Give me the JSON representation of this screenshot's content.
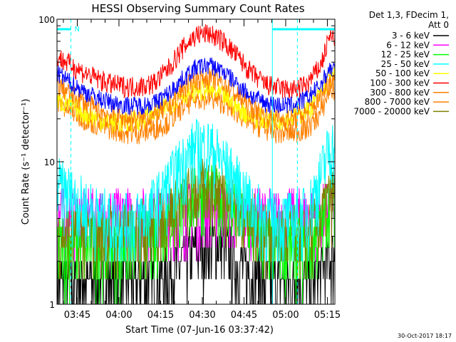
{
  "chart_data": {
    "type": "line",
    "title": "HESSI Observing Summary Count Rates",
    "xlabel": "Start Time (07-Jun-16 03:37:42)",
    "ylabel": "Count Rate (s⁻¹ detector⁻¹)",
    "yscale": "log",
    "ylim": [
      1,
      100
    ],
    "xlim_minutes": [
      0,
      100
    ],
    "x_tick_labels": [
      "03:45",
      "04:00",
      "04:15",
      "04:30",
      "04:45",
      "05:00",
      "05:15"
    ],
    "x_tick_minutes": [
      7.3,
      22.3,
      37.3,
      52.3,
      67.3,
      82.3,
      97.3
    ],
    "y_tick_labels": [
      "1",
      "10",
      "100"
    ],
    "y_tick_values": [
      1,
      10,
      100
    ],
    "grid": false,
    "legend_header": [
      "Det 1,3, FDecim 1,",
      "Att 0"
    ],
    "legend_position": "right",
    "footer": "30-Oct-2017 18:17",
    "markers": {
      "night_label": "N",
      "night_end_minute": 5,
      "saa_start_minute": 77.5,
      "saa_end_minute": 86.5,
      "dashed_minutes": [
        5,
        86.5
      ]
    },
    "x_minutes": [
      0,
      5,
      10,
      15,
      20,
      25,
      30,
      35,
      40,
      45,
      50,
      55,
      60,
      65,
      70,
      75,
      80,
      85,
      90,
      95,
      98
    ],
    "series": [
      {
        "name": "3 - 6 keV",
        "color": "#000000",
        "values": [
          1.5,
          1.5,
          1.5,
          1.5,
          1.5,
          1.5,
          1.5,
          1.5,
          1.6,
          2.0,
          2.5,
          2.8,
          2.5,
          2.0,
          1.6,
          1.5,
          1.5,
          1.5,
          1.5,
          1.7,
          2.2
        ]
      },
      {
        "name": "6 - 12 keV",
        "color": "#ff00ff",
        "values": [
          4.2,
          4.2,
          4.2,
          4.2,
          4.2,
          4.2,
          4.2,
          4.2,
          4.2,
          4.5,
          4.8,
          5.0,
          4.8,
          4.3,
          4.2,
          4.2,
          4.2,
          4.2,
          4.2,
          4.5,
          5.0
        ]
      },
      {
        "name": "12 - 25 keV",
        "color": "#00ff00",
        "values": [
          2.6,
          2.6,
          2.6,
          2.6,
          2.6,
          2.6,
          2.8,
          3.2,
          4.0,
          5.0,
          6.0,
          6.2,
          5.5,
          4.5,
          3.5,
          2.8,
          2.6,
          2.6,
          2.6,
          3.5,
          5.5
        ]
      },
      {
        "name": "25 - 50 keV",
        "color": "#00ffff",
        "values": [
          7.0,
          6.0,
          5.0,
          4.2,
          4.0,
          4.0,
          4.2,
          5.0,
          7.0,
          10.0,
          13.0,
          13.0,
          10.0,
          7.0,
          5.0,
          4.2,
          4.0,
          4.0,
          4.5,
          8.0,
          13.0
        ]
      },
      {
        "name": "50 - 100 keV",
        "color": "#ffff00",
        "values": [
          27,
          25,
          22,
          20,
          19,
          19,
          20,
          22,
          25,
          30,
          32,
          32,
          29,
          24,
          21,
          20,
          20,
          21,
          23,
          30,
          40
        ]
      },
      {
        "name": "100 - 300 keV",
        "color": "#ff0000",
        "values": [
          55,
          48,
          42,
          38,
          35,
          34,
          34,
          36,
          45,
          62,
          78,
          80,
          70,
          55,
          42,
          35,
          33,
          32,
          35,
          48,
          75
        ]
      },
      {
        "name": "300 - 800 keV",
        "color": "#ff8000",
        "values": [
          35,
          30,
          26,
          23,
          21,
          20,
          20,
          21,
          24,
          32,
          38,
          39,
          36,
          29,
          24,
          21,
          20,
          20,
          22,
          28,
          38
        ]
      },
      {
        "name": "800 - 7000 keV",
        "color": "#ff8000",
        "values": [
          26,
          23,
          20,
          18,
          17,
          16,
          16,
          17,
          19,
          24,
          28,
          28,
          26,
          22,
          19,
          17,
          16,
          16,
          17,
          22,
          32
        ]
      },
      {
        "name": "7000 - 20000 keV",
        "color": "#808000",
        "values": [
          3.2,
          3.2,
          3.2,
          3.2,
          3.2,
          3.2,
          3.4,
          3.8,
          4.5,
          5.5,
          6.5,
          7.0,
          6.2,
          5.0,
          4.0,
          3.4,
          3.2,
          3.2,
          3.2,
          4.0,
          6.0
        ]
      }
    ],
    "extra_trace": {
      "color": "#0000ff",
      "values": [
        42,
        36,
        31,
        28,
        26,
        25,
        25,
        26,
        30,
        38,
        46,
        48,
        43,
        35,
        29,
        26,
        25,
        25,
        28,
        35,
        45
      ]
    }
  }
}
